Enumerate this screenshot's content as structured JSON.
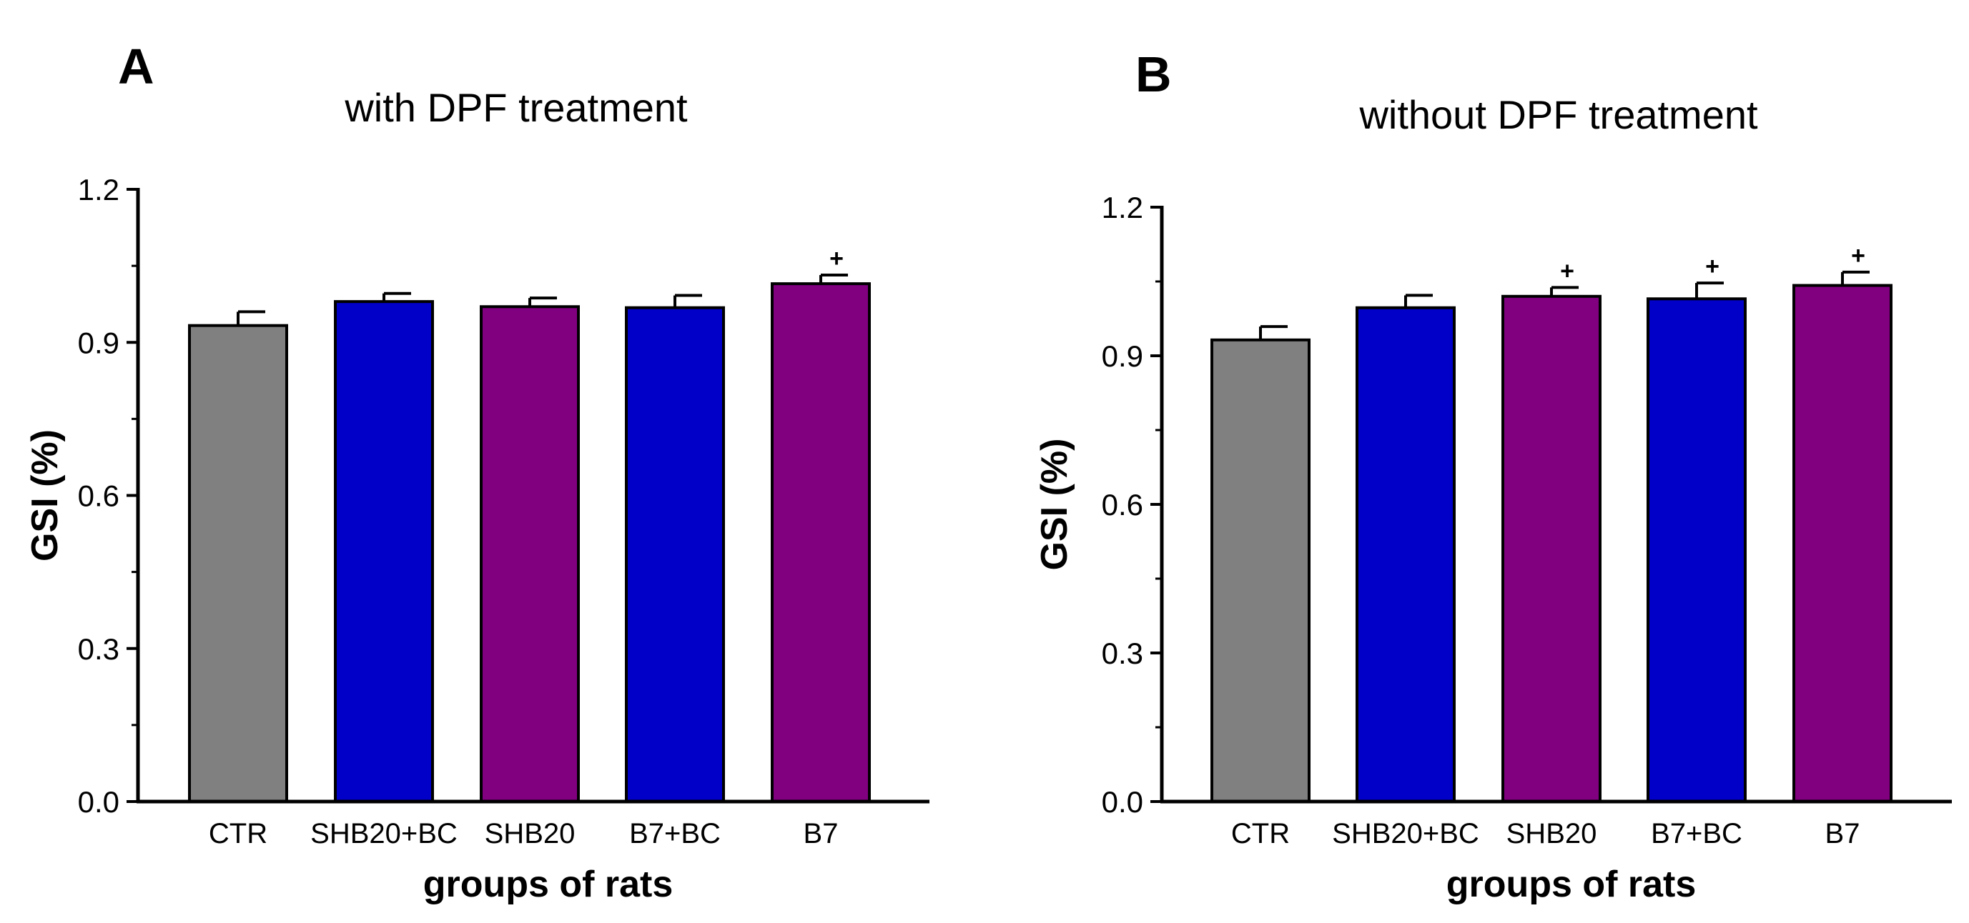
{
  "chart_data": [
    {
      "type": "bar",
      "panel": "A",
      "title": "with DPF treatment",
      "xlabel": "groups of rats",
      "ylabel": "GSI (%)",
      "ylim": [
        0,
        1.2
      ],
      "yticks": [
        "0.0",
        "0.3",
        "0.6",
        "0.9",
        "1.2"
      ],
      "categories": [
        "CTR",
        "SHB20+BC",
        "SHB20",
        "B7+BC",
        "B7"
      ],
      "values": [
        0.933,
        0.98,
        0.97,
        0.968,
        1.015
      ],
      "errors": [
        0.027,
        0.016,
        0.017,
        0.024,
        0.017
      ],
      "colors": [
        "#808080",
        "#0000c8",
        "#800080",
        "#0000c8",
        "#800080"
      ],
      "significance": [
        "",
        "",
        "",
        "",
        "+"
      ]
    },
    {
      "type": "bar",
      "panel": "B",
      "title": "without DPF treatment",
      "xlabel": "groups of rats",
      "ylabel": "GSI (%)",
      "ylim": [
        0,
        1.2
      ],
      "yticks": [
        "0.0",
        "0.3",
        "0.6",
        "0.9",
        "1.2"
      ],
      "categories": [
        "CTR",
        "SHB20+BC",
        "SHB20",
        "B7+BC",
        "B7"
      ],
      "values": [
        0.932,
        0.997,
        1.02,
        1.015,
        1.042
      ],
      "errors": [
        0.027,
        0.025,
        0.018,
        0.032,
        0.027
      ],
      "colors": [
        "#808080",
        "#0000c8",
        "#800080",
        "#0000c8",
        "#800080"
      ],
      "significance": [
        "",
        "",
        "+",
        "+",
        "+"
      ]
    }
  ]
}
